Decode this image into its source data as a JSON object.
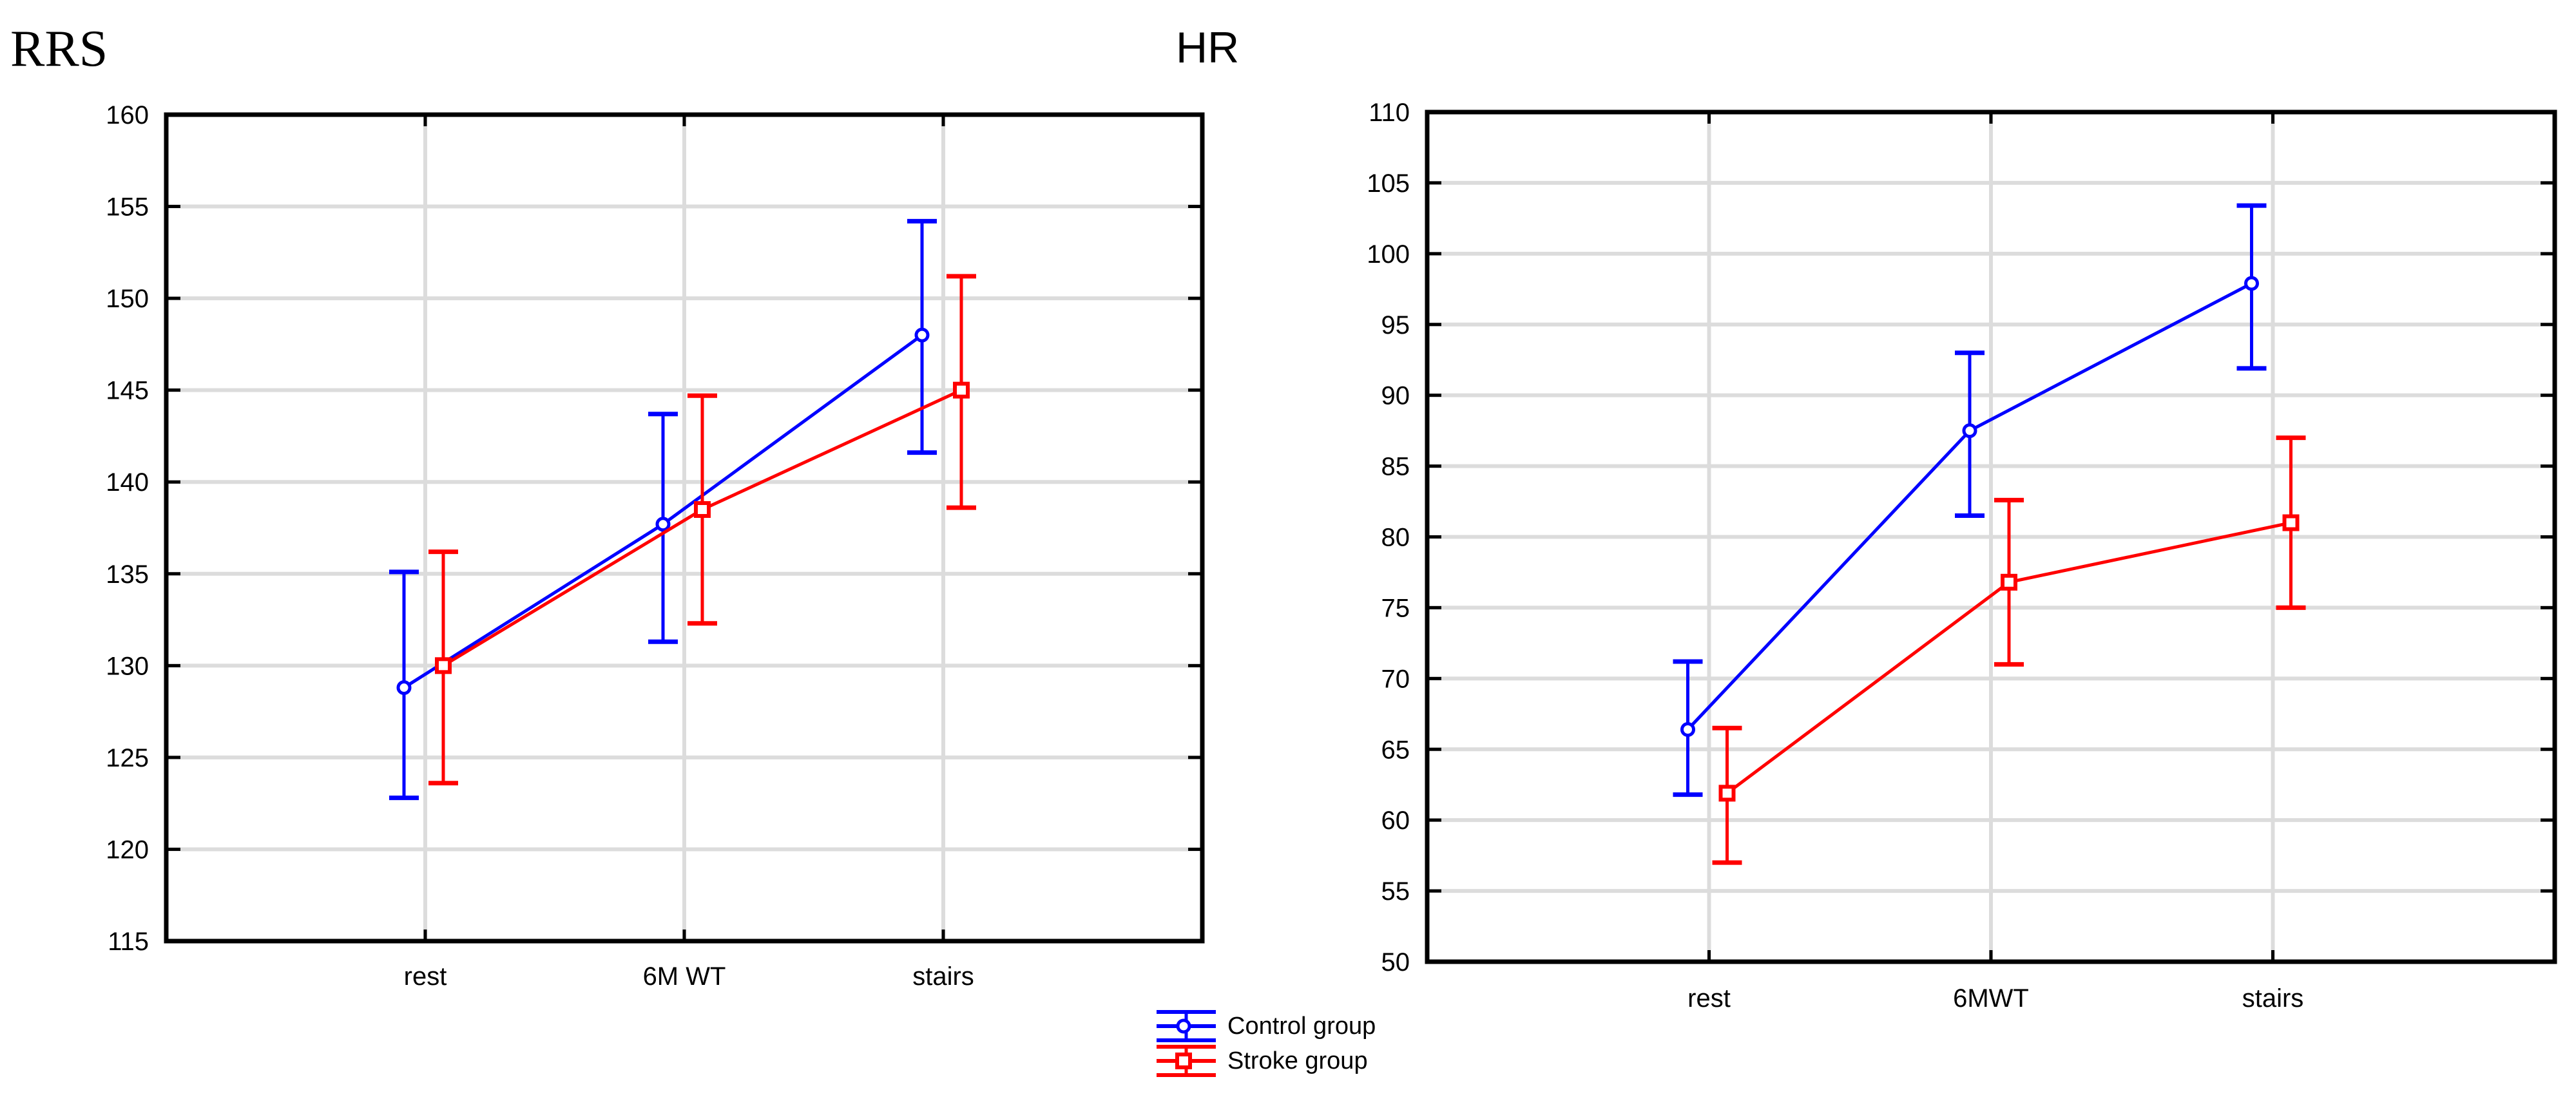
{
  "page": {
    "background": "#ffffff"
  },
  "style": {
    "axis_color": "#000000",
    "grid_color": "#dcdcdc",
    "text_color": "#000000",
    "control_color": "#0000ff",
    "stroke_color": "#ff0000"
  },
  "legend": {
    "position": "bottom-center",
    "items": [
      {
        "label": "Control group",
        "color": "#0000ff",
        "marker": "circle"
      },
      {
        "label": "Stroke group",
        "color": "#ff0000",
        "marker": "square"
      }
    ]
  },
  "chart_data": [
    {
      "type": "line",
      "title": "RRS",
      "categories": [
        "rest",
        "6M WT",
        "stairs"
      ],
      "ylim": [
        115,
        160
      ],
      "ytick_step": 5,
      "yticks": [
        115,
        120,
        125,
        130,
        135,
        140,
        145,
        150,
        155,
        160
      ],
      "grid": true,
      "legend_position": "bottom-center",
      "series": [
        {
          "name": "Control group",
          "color": "#0000ff",
          "marker": "circle",
          "values": [
            128.8,
            137.7,
            148.0
          ],
          "err_low": [
            122.8,
            131.3,
            141.6
          ],
          "err_high": [
            135.1,
            143.7,
            154.2
          ]
        },
        {
          "name": "Stroke group",
          "color": "#ff0000",
          "marker": "square",
          "values": [
            130.0,
            138.5,
            145.0
          ],
          "err_low": [
            123.6,
            132.3,
            138.6
          ],
          "err_high": [
            136.2,
            144.7,
            151.2
          ]
        }
      ]
    },
    {
      "type": "line",
      "title": "HR",
      "categories": [
        "rest",
        "6MWT",
        "stairs"
      ],
      "ylim": [
        50,
        110
      ],
      "ytick_step": 5,
      "yticks": [
        50,
        55,
        60,
        65,
        70,
        75,
        80,
        85,
        90,
        95,
        100,
        105,
        110
      ],
      "grid": true,
      "legend_position": "bottom-center",
      "series": [
        {
          "name": "Control group",
          "color": "#0000ff",
          "marker": "circle",
          "values": [
            66.4,
            87.5,
            97.9
          ],
          "err_low": [
            61.8,
            81.5,
            91.9
          ],
          "err_high": [
            71.2,
            93.0,
            103.4
          ]
        },
        {
          "name": "Stroke group",
          "color": "#ff0000",
          "marker": "square",
          "values": [
            61.9,
            76.8,
            81.0
          ],
          "err_low": [
            57.0,
            71.0,
            75.0
          ],
          "err_high": [
            66.5,
            82.6,
            87.0
          ]
        }
      ]
    }
  ]
}
